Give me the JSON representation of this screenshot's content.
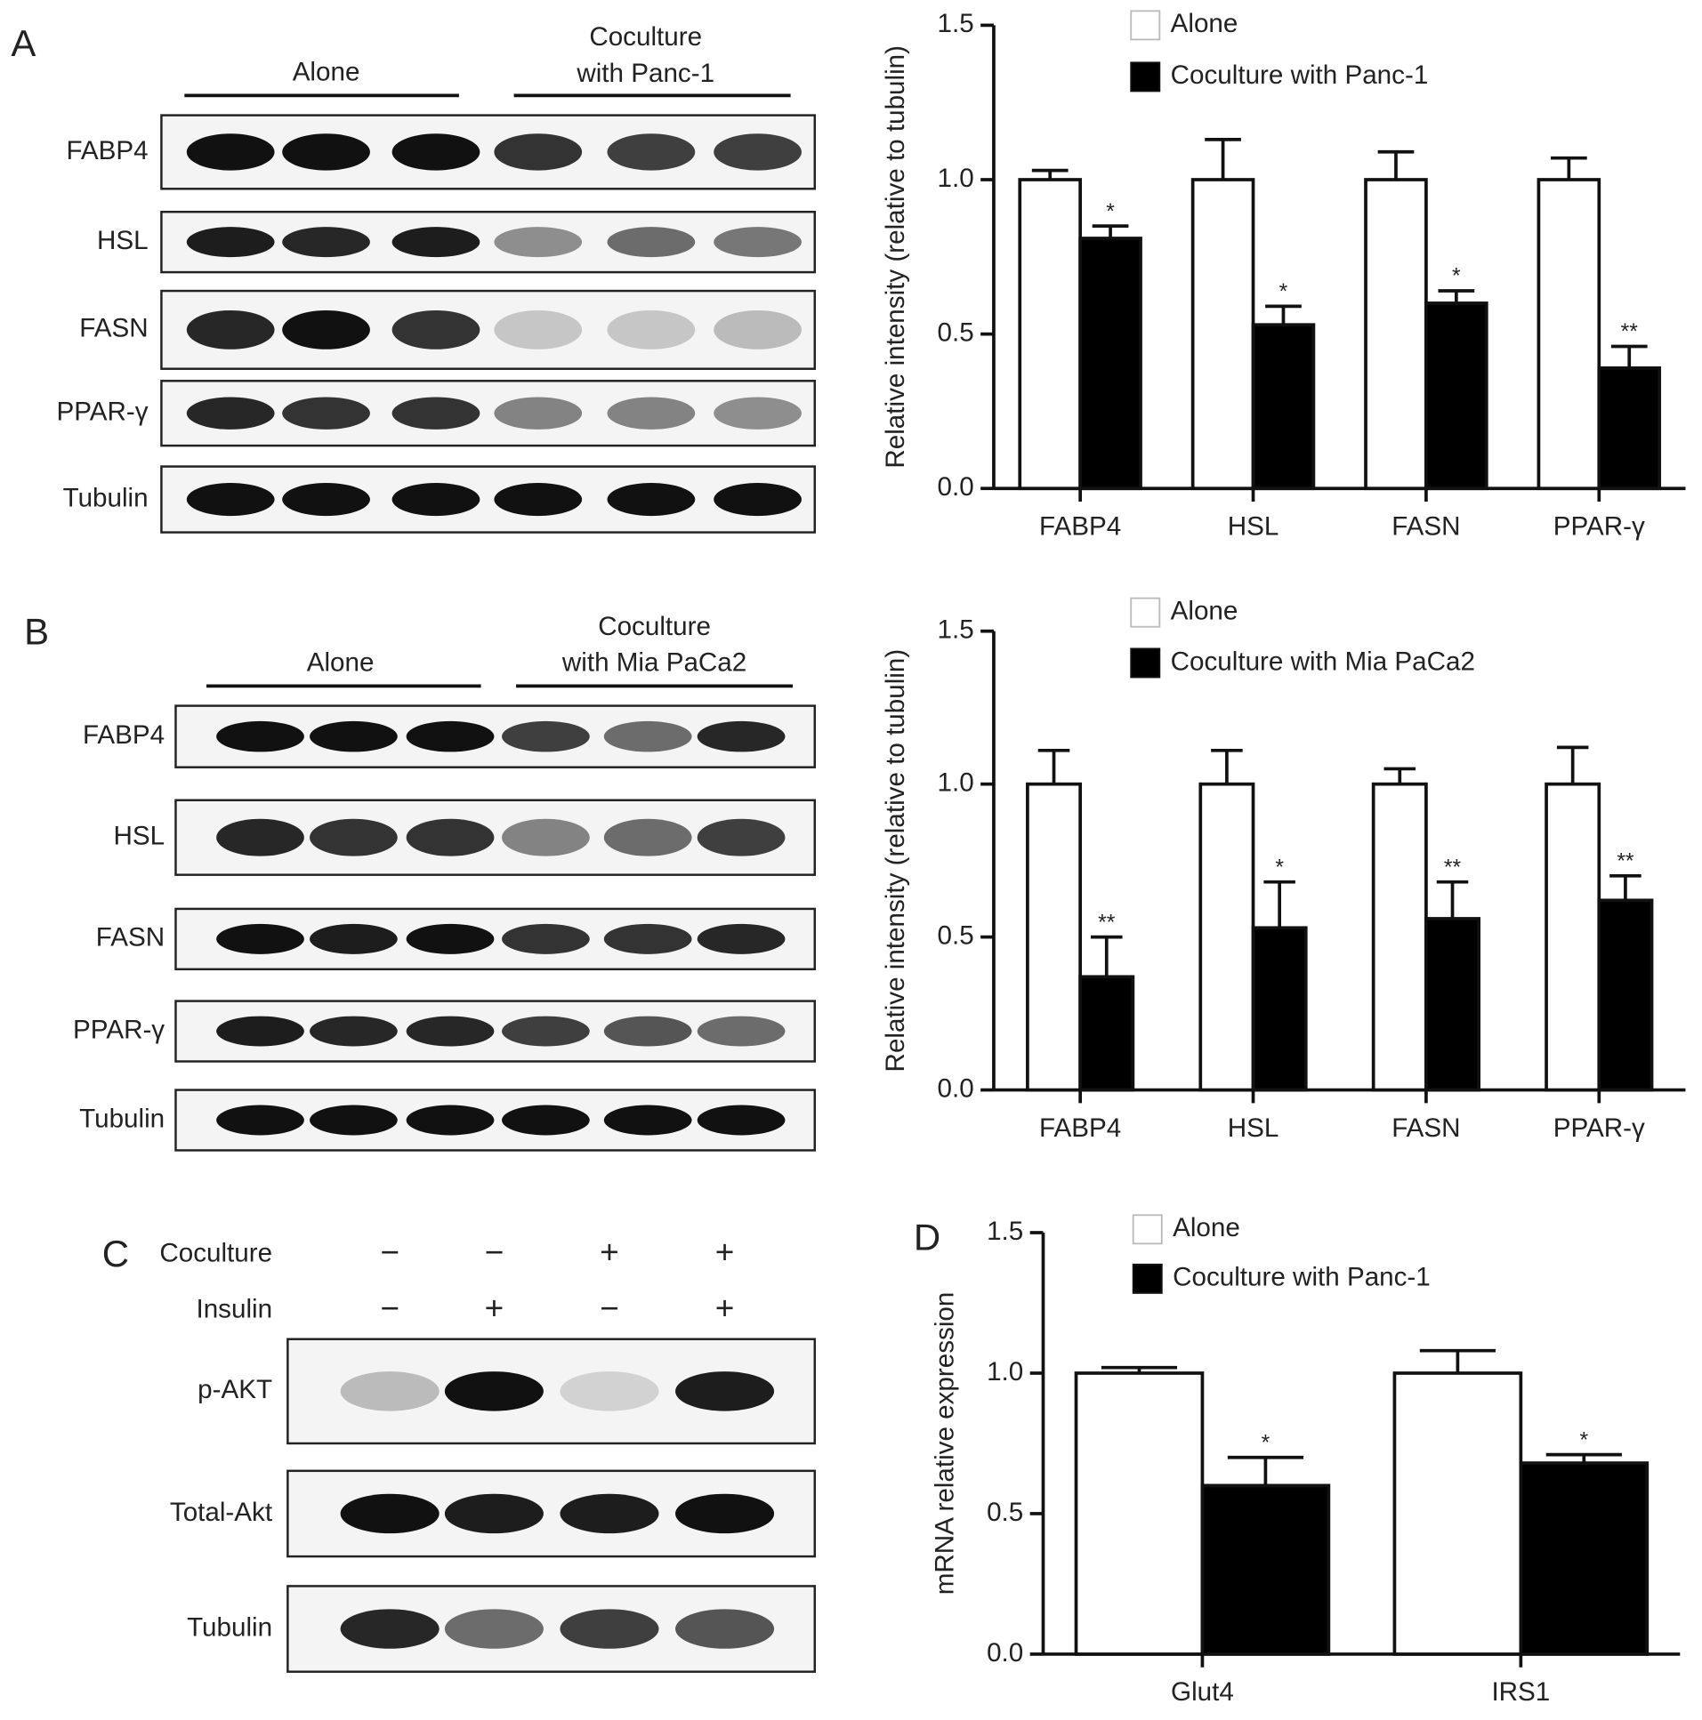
{
  "panel_labels": [
    "A",
    "B",
    "C",
    "D"
  ],
  "chart_data": [
    {
      "type": "bar",
      "ylabel": "Relative intensity (relative to tubulin)",
      "categories": [
        "FABP4",
        "HSL",
        "FASN",
        "PPAR-γ"
      ],
      "series": [
        {
          "name": "Alone",
          "color": "#ffffff",
          "values": [
            1,
            1,
            1,
            1
          ],
          "errors": [
            0.03,
            0.13,
            0.09,
            0.07
          ]
        },
        {
          "name": "Coculture with Panc-1",
          "color": "#000000",
          "values": [
            0.81,
            0.53,
            0.6,
            0.39
          ],
          "errors": [
            0.04,
            0.06,
            0.04,
            0.07
          ],
          "significance": [
            "*",
            "*",
            "*",
            "**"
          ]
        }
      ],
      "ylim": [
        0,
        1.5
      ],
      "yticks": [
        {
          "value": 0,
          "label": "0.0"
        },
        0.5,
        {
          "value": 1,
          "label": "1.0"
        },
        1.5
      ],
      "grid": false,
      "legend": "top"
    },
    {
      "type": "bar",
      "ylabel": "Relative intensity (relative to tubulin)",
      "categories": [
        "FABP4",
        "HSL",
        "FASN",
        "PPAR-γ"
      ],
      "series": [
        {
          "name": "Alone",
          "color": "#ffffff",
          "values": [
            1,
            1,
            1,
            1
          ],
          "errors": [
            0.11,
            0.11,
            0.05,
            0.12
          ]
        },
        {
          "name": "Coculture with Mia PaCa2",
          "color": "#000000",
          "values": [
            0.37,
            0.53,
            0.56,
            0.62
          ],
          "errors": [
            0.13,
            0.15,
            0.12,
            0.08
          ],
          "significance": [
            "**",
            "*",
            "**",
            "**"
          ]
        }
      ],
      "ylim": [
        0,
        1.5
      ],
      "yticks": [
        {
          "value": 0,
          "label": "0.0"
        },
        0.5,
        {
          "value": 1,
          "label": "1.0"
        },
        1.5
      ],
      "grid": false,
      "legend": "top"
    },
    {
      "type": "bar",
      "ylabel": "mRNA relative expression",
      "categories": [
        "Glut4",
        "IRS1"
      ],
      "series": [
        {
          "name": "Alone",
          "color": "#ffffff",
          "values": [
            1,
            1
          ],
          "errors": [
            0.02,
            0.08
          ]
        },
        {
          "name": "Coculture with Panc-1",
          "color": "#000000",
          "values": [
            0.6,
            0.68
          ],
          "errors": [
            0.1,
            0.03
          ],
          "significance": [
            "*",
            "*"
          ]
        }
      ],
      "ylim": [
        0,
        1.5
      ],
      "yticks": [
        {
          "value": 0,
          "label": "0.0"
        },
        0.5,
        {
          "value": 1,
          "label": "1.0"
        },
        1.5
      ],
      "grid": false,
      "legend": "top"
    }
  ],
  "blots": [
    {
      "groups": [
        [
          "Alone"
        ],
        [
          "Coculture",
          "with Panc-1"
        ]
      ],
      "rows": [
        "FABP4",
        "HSL",
        "FASN",
        "PPAR-γ",
        "Tubulin"
      ]
    },
    {
      "groups": [
        [
          "Alone"
        ],
        [
          "Coculture",
          "with Mia PaCa2"
        ]
      ],
      "rows": [
        "FABP4",
        "HSL",
        "FASN",
        "PPAR-γ",
        "Tubulin"
      ]
    },
    {
      "conditions": [
        {
          "name": "Coculture",
          "signs": [
            "−",
            "−",
            "+",
            "+"
          ]
        },
        {
          "name": "Insulin",
          "signs": [
            "−",
            "+",
            "−",
            "+"
          ]
        }
      ],
      "rows": [
        "p-AKT",
        "Total-Akt",
        "Tubulin"
      ]
    }
  ]
}
